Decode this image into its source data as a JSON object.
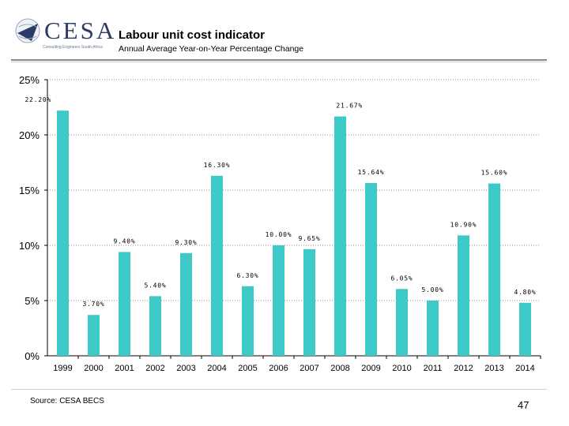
{
  "header": {
    "logo_text": "CESA",
    "logo_tagline": "Consulting Engineers South Africa",
    "title": "Labour unit cost indicator",
    "subtitle": "Annual Average Year-on-Year Percentage Change"
  },
  "footer": {
    "source": "Source: CESA BECS",
    "page_number": "47"
  },
  "colors": {
    "bar": "#3ec9c9",
    "grid": "#8c8c8c"
  },
  "chart_data": {
    "type": "bar",
    "title": "Labour unit cost indicator",
    "subtitle": "Annual Average Year-on-Year Percentage Change",
    "xlabel": "",
    "ylabel": "",
    "ylim": [
      0,
      25
    ],
    "y_ticks": [
      "0%",
      "5%",
      "10%",
      "15%",
      "20%",
      "25%"
    ],
    "grid": true,
    "categories": [
      "1999",
      "2000",
      "2001",
      "2002",
      "2003",
      "2004",
      "2005",
      "2006",
      "2007",
      "2008",
      "2009",
      "2010",
      "2011",
      "2012",
      "2013",
      "2014"
    ],
    "values": [
      22.2,
      3.7,
      9.4,
      5.4,
      9.3,
      16.3,
      6.3,
      10.0,
      9.65,
      21.67,
      15.64,
      6.05,
      5.0,
      10.9,
      15.6,
      4.8
    ],
    "labels": [
      "22.20%",
      "3.70%",
      "9.40%",
      "5.40%",
      "9.30%",
      "16.30%",
      "6.30%",
      "10.00%",
      "9.65%",
      "21.67%",
      "15.64%",
      "6.05%",
      "5.00%",
      "10.90%",
      "15.60%",
      "4.80%"
    ]
  }
}
